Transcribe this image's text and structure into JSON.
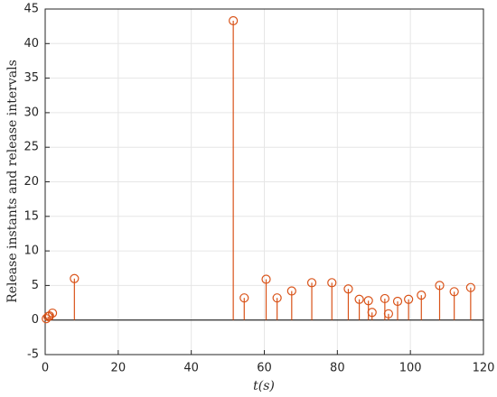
{
  "chart_data": {
    "type": "stem",
    "x": [
      0.3,
      0.8,
      1.2,
      2,
      8,
      51.5,
      54.5,
      60.5,
      63.5,
      67.5,
      73,
      78.5,
      83,
      86,
      88.5,
      89.5,
      93,
      94,
      96.5,
      99.5,
      103,
      108,
      112,
      116.5
    ],
    "series": [
      {
        "name": "Release instants and release intervals",
        "color": "#d95319",
        "values": [
          0.2,
          0.5,
          0.6,
          1.0,
          6.0,
          43.3,
          3.2,
          5.9,
          3.2,
          4.2,
          5.4,
          5.4,
          4.5,
          3.0,
          2.8,
          1.1,
          3.1,
          0.9,
          2.7,
          3.0,
          3.6,
          5.0,
          4.1,
          4.7
        ]
      }
    ],
    "xlabel": "t(s)",
    "ylabel": "Release instants and release intervals",
    "xlim": [
      0,
      120
    ],
    "ylim": [
      -5,
      45
    ],
    "xticks": [
      0,
      20,
      40,
      60,
      80,
      100,
      120
    ],
    "yticks": [
      -5,
      0,
      5,
      10,
      15,
      20,
      25,
      30,
      35,
      40,
      45
    ],
    "grid": true
  }
}
